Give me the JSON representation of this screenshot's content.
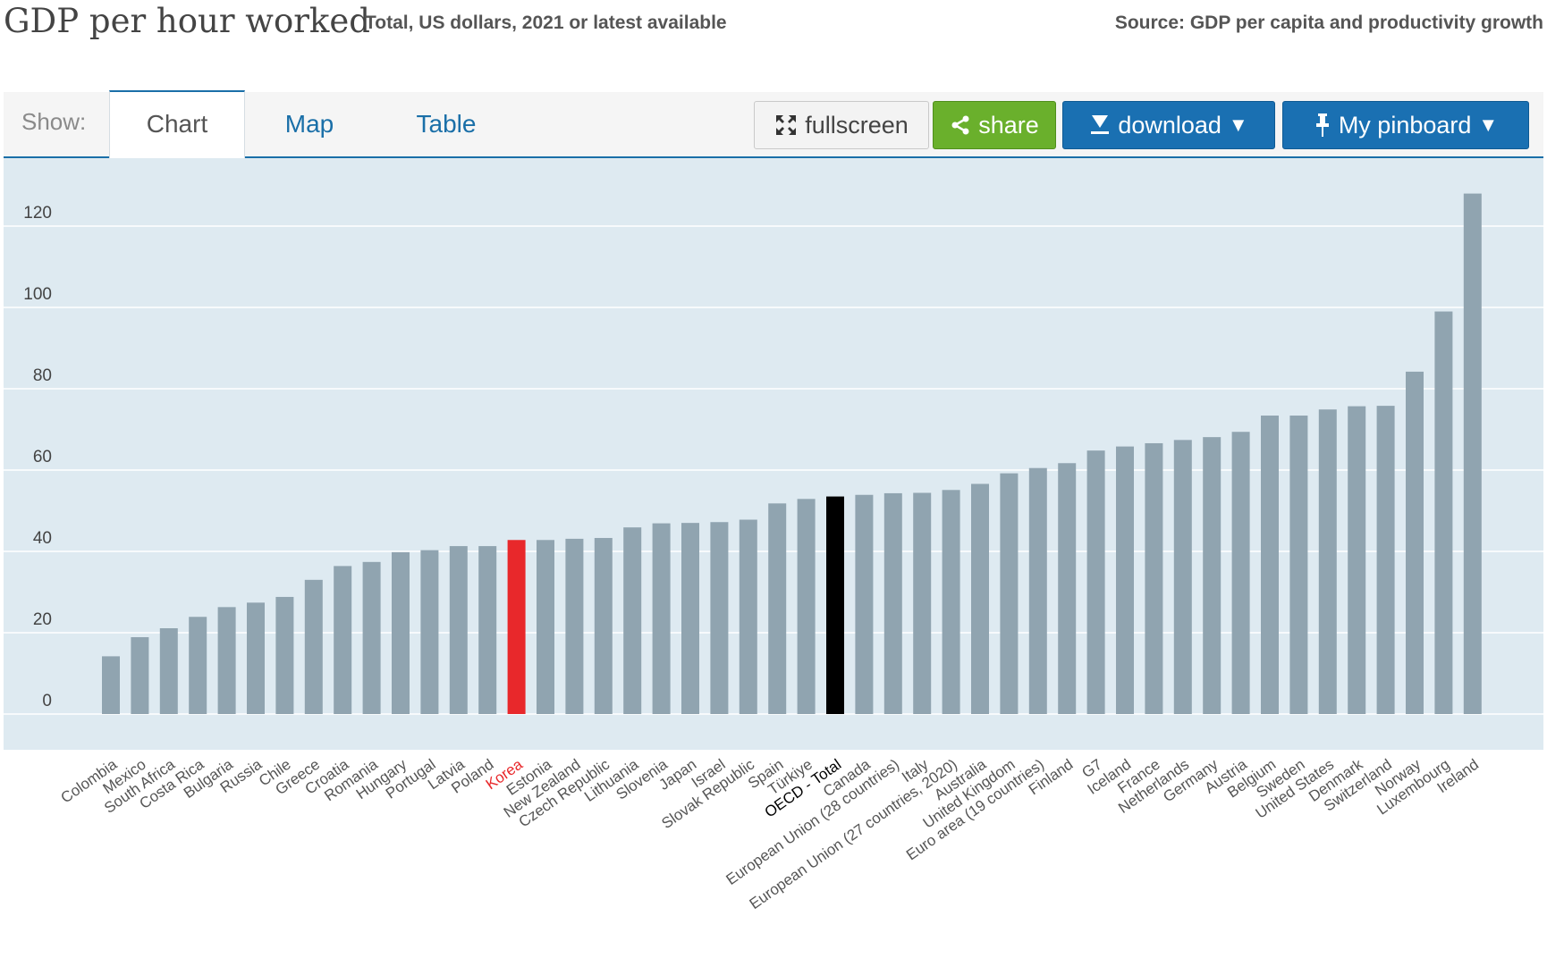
{
  "header": {
    "title": "GDP per hour worked",
    "subtitle": "Total, US dollars, 2021 or latest available",
    "source": "Source: GDP per capita and productivity growth"
  },
  "toolbar": {
    "show_label": "Show:",
    "tabs": [
      {
        "label": "Chart",
        "active": true
      },
      {
        "label": "Map",
        "active": false
      },
      {
        "label": "Table",
        "active": false
      }
    ],
    "fullscreen_label": "fullscreen",
    "share_label": "share",
    "download_label": "download",
    "pinboard_label": "My pinboard",
    "dropdown_arrow": "▼"
  },
  "colors": {
    "bar_default": "#90a4b0",
    "bar_highlight_red": "#e8282b",
    "bar_highlight_black": "#000000",
    "label_red": "#e8282b",
    "label_black": "#000000",
    "plot_bg": "#deeaf1",
    "gridline": "#ffffff",
    "accent_blue": "#1a70b2",
    "share_green": "#6ab02c"
  },
  "chart_data": {
    "type": "bar",
    "title": "GDP per hour worked",
    "subtitle": "Total, US dollars, 2021 or latest available",
    "xlabel": "",
    "ylabel": "",
    "ylim": [
      0,
      130
    ],
    "yticks": [
      0,
      20,
      40,
      60,
      80,
      100,
      120
    ],
    "grid": true,
    "categories": [
      "Colombia",
      "Mexico",
      "South Africa",
      "Costa Rica",
      "Bulgaria",
      "Russia",
      "Chile",
      "Greece",
      "Croatia",
      "Romania",
      "Hungary",
      "Portugal",
      "Latvia",
      "Poland",
      "Korea",
      "Estonia",
      "New Zealand",
      "Czech Republic",
      "Lithuania",
      "Slovenia",
      "Japan",
      "Israel",
      "Slovak Republic",
      "Spain",
      "Türkiye",
      "OECD - Total",
      "Canada",
      "European Union (28 countries)",
      "Italy",
      "European Union (27 countries, 2020)",
      "Australia",
      "United Kingdom",
      "Euro area (19 countries)",
      "Finland",
      "G7",
      "Iceland",
      "France",
      "Netherlands",
      "Germany",
      "Austria",
      "Belgium",
      "Sweden",
      "United States",
      "Denmark",
      "Switzerland",
      "Norway",
      "Luxembourg",
      "Ireland"
    ],
    "values": [
      14.2,
      18.9,
      21.1,
      23.9,
      26.3,
      27.4,
      28.8,
      33.0,
      36.4,
      37.4,
      39.8,
      40.3,
      41.3,
      41.3,
      42.8,
      42.8,
      43.1,
      43.3,
      45.9,
      46.9,
      47.0,
      47.2,
      47.8,
      51.8,
      52.9,
      53.5,
      53.9,
      54.3,
      54.4,
      55.1,
      56.6,
      59.2,
      60.5,
      61.7,
      64.8,
      65.8,
      66.6,
      67.4,
      68.1,
      69.4,
      73.4,
      73.4,
      74.9,
      75.7,
      75.8,
      84.2,
      99.0,
      128.0
    ],
    "highlights": {
      "Korea": "red",
      "OECD - Total": "black"
    }
  }
}
